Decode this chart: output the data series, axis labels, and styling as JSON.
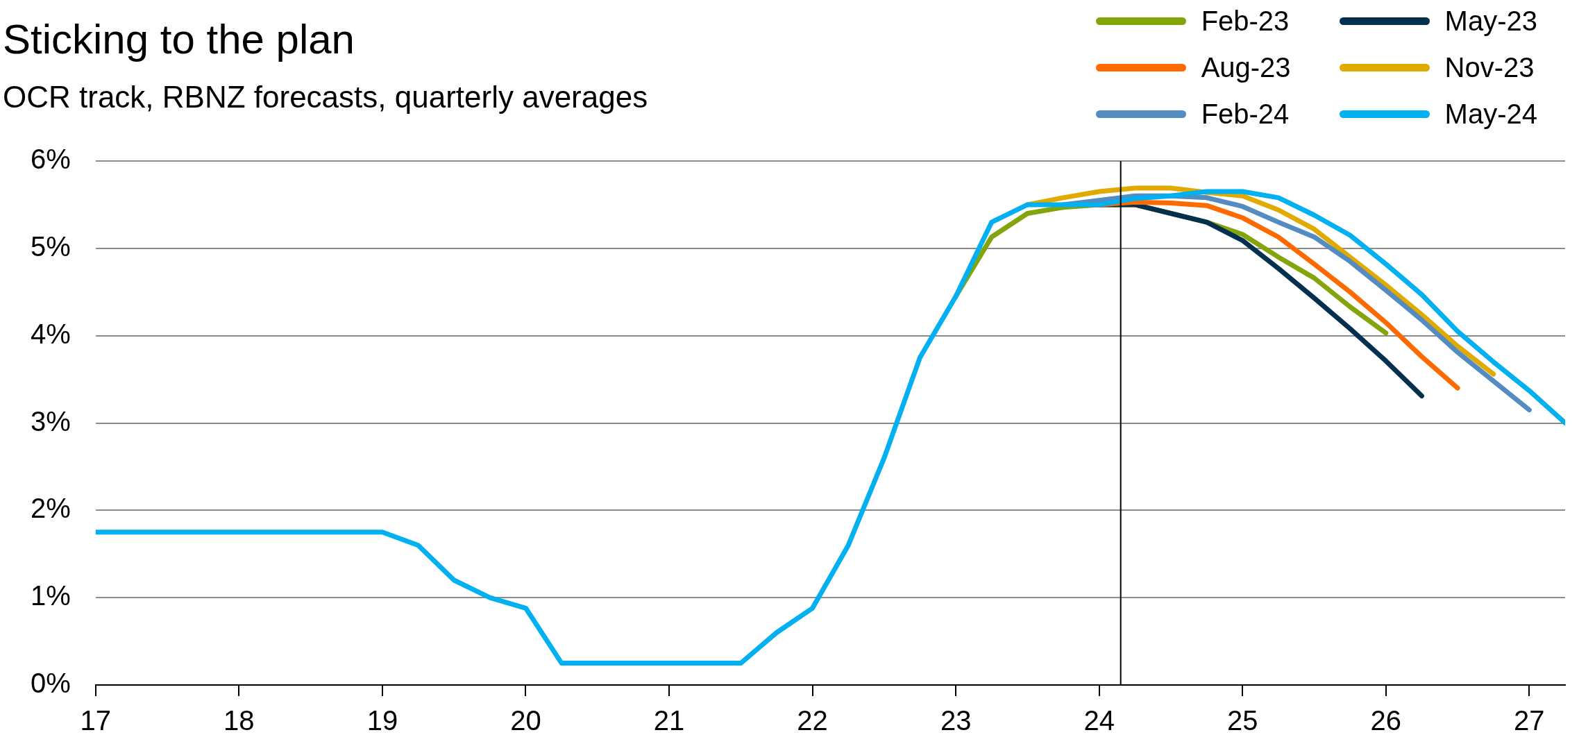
{
  "chart_data": {
    "type": "line",
    "title": "Sticking to the plan",
    "subtitle": "OCR track, RBNZ forecasts, quarterly averages",
    "xlim": [
      17,
      27.25
    ],
    "xticks": [
      17,
      18,
      19,
      20,
      21,
      22,
      23,
      24,
      25,
      26,
      27
    ],
    "ylim": [
      0,
      6
    ],
    "yticks": [
      {
        "value": 0,
        "label": "0%"
      },
      {
        "value": 1,
        "label": "1%"
      },
      {
        "value": 2,
        "label": "2%"
      },
      {
        "value": 3,
        "label": "3%"
      },
      {
        "value": 4,
        "label": "4%"
      },
      {
        "value": 5,
        "label": "5%"
      },
      {
        "value": 6,
        "label": "6%"
      }
    ],
    "grid": "y",
    "legend": "top right",
    "marker": "none",
    "line_style": "solid",
    "ref_lines": [
      {
        "axis": "x",
        "value": 24.15,
        "color": "#000000"
      }
    ],
    "series": [
      {
        "name": "Feb-23",
        "color": "#84a40c",
        "x": [
          23,
          23.25,
          23.5,
          23.75,
          24,
          24.25,
          24.5,
          24.75,
          25,
          25.25,
          25.5,
          25.75,
          26
        ],
        "values": [
          4.45,
          5.13,
          5.4,
          5.47,
          5.5,
          5.5,
          5.4,
          5.3,
          5.16,
          4.9,
          4.66,
          4.33,
          4.03
        ]
      },
      {
        "name": "May-23",
        "color": "#04304f",
        "x": [
          24,
          24.25,
          24.5,
          24.75,
          25,
          25.25,
          25.5,
          25.75,
          26,
          26.25
        ],
        "values": [
          5.5,
          5.5,
          5.4,
          5.3,
          5.09,
          4.77,
          4.43,
          4.08,
          3.71,
          3.31
        ]
      },
      {
        "name": "Aug-23",
        "color": "#ff6a00",
        "x": [
          24,
          24.25,
          24.5,
          24.75,
          25,
          25.25,
          25.5,
          25.75,
          26,
          26.25,
          26.5
        ],
        "values": [
          5.5,
          5.53,
          5.52,
          5.49,
          5.35,
          5.13,
          4.82,
          4.5,
          4.15,
          3.76,
          3.4
        ]
      },
      {
        "name": "Nov-23",
        "color": "#e0aa00",
        "x": [
          23.5,
          23.75,
          24,
          24.25,
          24.5,
          24.75,
          25,
          25.25,
          25.5,
          25.75,
          26,
          26.25,
          26.5,
          26.75
        ],
        "values": [
          5.5,
          5.58,
          5.65,
          5.69,
          5.69,
          5.64,
          5.6,
          5.44,
          5.22,
          4.9,
          4.58,
          4.24,
          3.88,
          3.56
        ]
      },
      {
        "name": "Feb-24",
        "color": "#548bc1",
        "x": [
          23.75,
          24,
          24.25,
          24.5,
          24.75,
          25,
          25.25,
          25.5,
          25.75,
          26,
          26.25,
          26.5,
          26.75,
          27
        ],
        "values": [
          5.5,
          5.55,
          5.6,
          5.6,
          5.58,
          5.48,
          5.3,
          5.13,
          4.85,
          4.52,
          4.18,
          3.81,
          3.48,
          3.15
        ]
      },
      {
        "name": "May-24",
        "color": "#00b0f0",
        "x": [
          17,
          17.25,
          17.5,
          17.75,
          18,
          18.25,
          18.5,
          18.75,
          19,
          19.25,
          19.5,
          19.75,
          20,
          20.25,
          20.5,
          20.75,
          21,
          21.25,
          21.5,
          21.75,
          22,
          22.25,
          22.5,
          22.75,
          23,
          23.25,
          23.5,
          23.75,
          24,
          24.25,
          24.5,
          24.75,
          25,
          25.25,
          25.5,
          25.75,
          26,
          26.25,
          26.5,
          26.75,
          27,
          27.25
        ],
        "values": [
          1.75,
          1.75,
          1.75,
          1.75,
          1.75,
          1.75,
          1.75,
          1.75,
          1.75,
          1.6,
          1.2,
          1.0,
          0.88,
          0.25,
          0.25,
          0.25,
          0.25,
          0.25,
          0.25,
          0.6,
          0.88,
          1.6,
          2.6,
          3.75,
          4.45,
          5.3,
          5.5,
          5.5,
          5.5,
          5.57,
          5.6,
          5.65,
          5.65,
          5.58,
          5.38,
          5.15,
          4.82,
          4.47,
          4.05,
          3.7,
          3.37,
          3.0
        ]
      }
    ]
  }
}
